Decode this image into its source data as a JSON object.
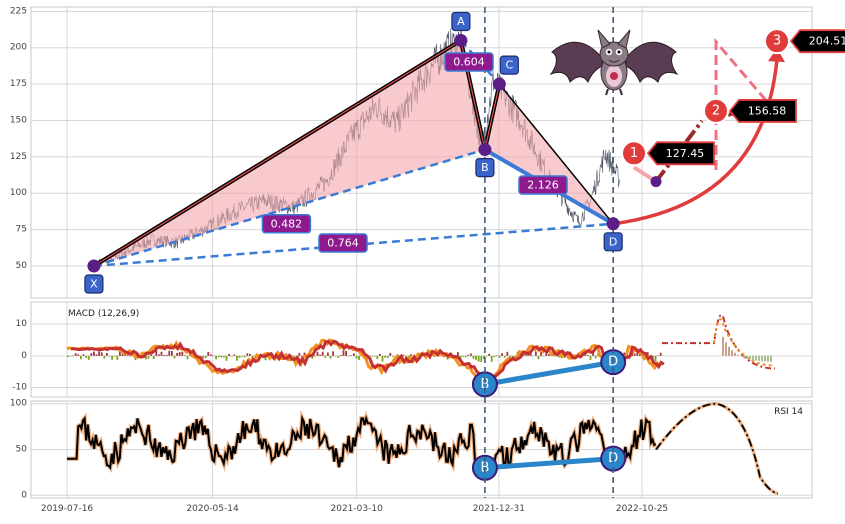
{
  "chart_data": [
    {
      "type": "line",
      "panel": "price",
      "y_ticks": [
        50,
        75,
        100,
        125,
        150,
        175,
        200,
        225
      ],
      "ylim": [
        28,
        228
      ],
      "x_ticks": [
        "2019-07-16",
        "2020-05-14",
        "2021-03-10",
        "2021-12-31",
        "2022-10-25"
      ],
      "grid": true,
      "price_path": [
        [
          "2019-09-20",
          52
        ],
        [
          "2019-11-15",
          60
        ],
        [
          "2020-01-10",
          68
        ],
        [
          "2020-03-01",
          66
        ],
        [
          "2020-05-01",
          76
        ],
        [
          "2020-07-01",
          88
        ],
        [
          "2020-09-01",
          95
        ],
        [
          "2020-11-01",
          90
        ],
        [
          "2021-01-05",
          108
        ],
        [
          "2021-03-01",
          140
        ],
        [
          "2021-04-20",
          160
        ],
        [
          "2021-06-01",
          148
        ],
        [
          "2021-08-01",
          182
        ],
        [
          "2021-09-10",
          198
        ],
        [
          "2021-10-13",
          205
        ],
        [
          "2021-11-25",
          130
        ],
        [
          "2021-12-20",
          178
        ],
        [
          "2022-02-15",
          150
        ],
        [
          "2022-04-15",
          110
        ],
        [
          "2022-06-15",
          80
        ],
        [
          "2022-07-10",
          95
        ],
        [
          "2022-08-10",
          128
        ],
        [
          "2022-09-10",
          108
        ]
      ],
      "pattern": {
        "points": [
          {
            "label": "X",
            "date": "2019-09-10",
            "value": 50
          },
          {
            "label": "A",
            "date": "2021-10-13",
            "value": 205
          },
          {
            "label": "B",
            "date": "2021-12-02",
            "value": 130
          },
          {
            "label": "C",
            "date": "2022-01-01",
            "value": 175
          },
          {
            "label": "D",
            "date": "2022-08-26",
            "value": 79
          }
        ],
        "ratios": [
          {
            "label": "0.482",
            "from": "X",
            "to": "B"
          },
          {
            "label": "0.604",
            "from": "A",
            "to": "C"
          },
          {
            "label": "2.126",
            "from": "B",
            "to": "D"
          },
          {
            "label": "0.764",
            "from": "X",
            "to": "D"
          }
        ]
      },
      "targets": [
        {
          "label": "1",
          "value": 127.45
        },
        {
          "label": "2",
          "value": 156.58
        },
        {
          "label": "3",
          "value": 204.51
        }
      ],
      "target_labels": [
        "127.45",
        "156.58",
        "204.51"
      ],
      "vertical_lines_at": [
        "2021-12-02",
        "2022-08-26"
      ]
    },
    {
      "type": "line",
      "panel": "macd",
      "title": "MACD (12,26,9)",
      "y_ticks": [
        10,
        0,
        -10
      ],
      "ylim": [
        -13,
        17
      ],
      "divergence": [
        {
          "label": "B",
          "date": "2021-12-02",
          "value": -9
        },
        {
          "label": "D",
          "date": "2022-08-26",
          "value": -2
        }
      ]
    },
    {
      "type": "line",
      "panel": "rsi",
      "title": "RSI 14",
      "y_ticks": [
        100,
        50,
        0
      ],
      "ylim": [
        -3,
        103
      ],
      "divergence": [
        {
          "label": "B",
          "date": "2021-12-02",
          "value": 30
        },
        {
          "label": "D",
          "date": "2022-08-26",
          "value": 40
        }
      ]
    }
  ],
  "colors": {
    "panel_bg": "#ffffff",
    "grid": "#d7d7d7",
    "price_line": "#4a5060",
    "pattern_fill": "#f4a6ad",
    "pattern_edge": "#000000",
    "pattern_edge_inner": "#e24f4f",
    "leg_blue": "#3a7bd5",
    "ratio_box": "#8e1a8e",
    "point_box": "#3b63c9",
    "point_dot": "#5b1e86",
    "target_circle": "#e03c3c",
    "target_text_bg": "#000000",
    "dashed_vertical": "#3d5f7e",
    "macd_orange": "#f29020",
    "macd_red": "#c53030",
    "rsi_black": "#000000",
    "rsi_halo": "#f0b58a",
    "divergence_blue": "#2a86c9",
    "bat_icon": "bat-mascot-icon"
  }
}
